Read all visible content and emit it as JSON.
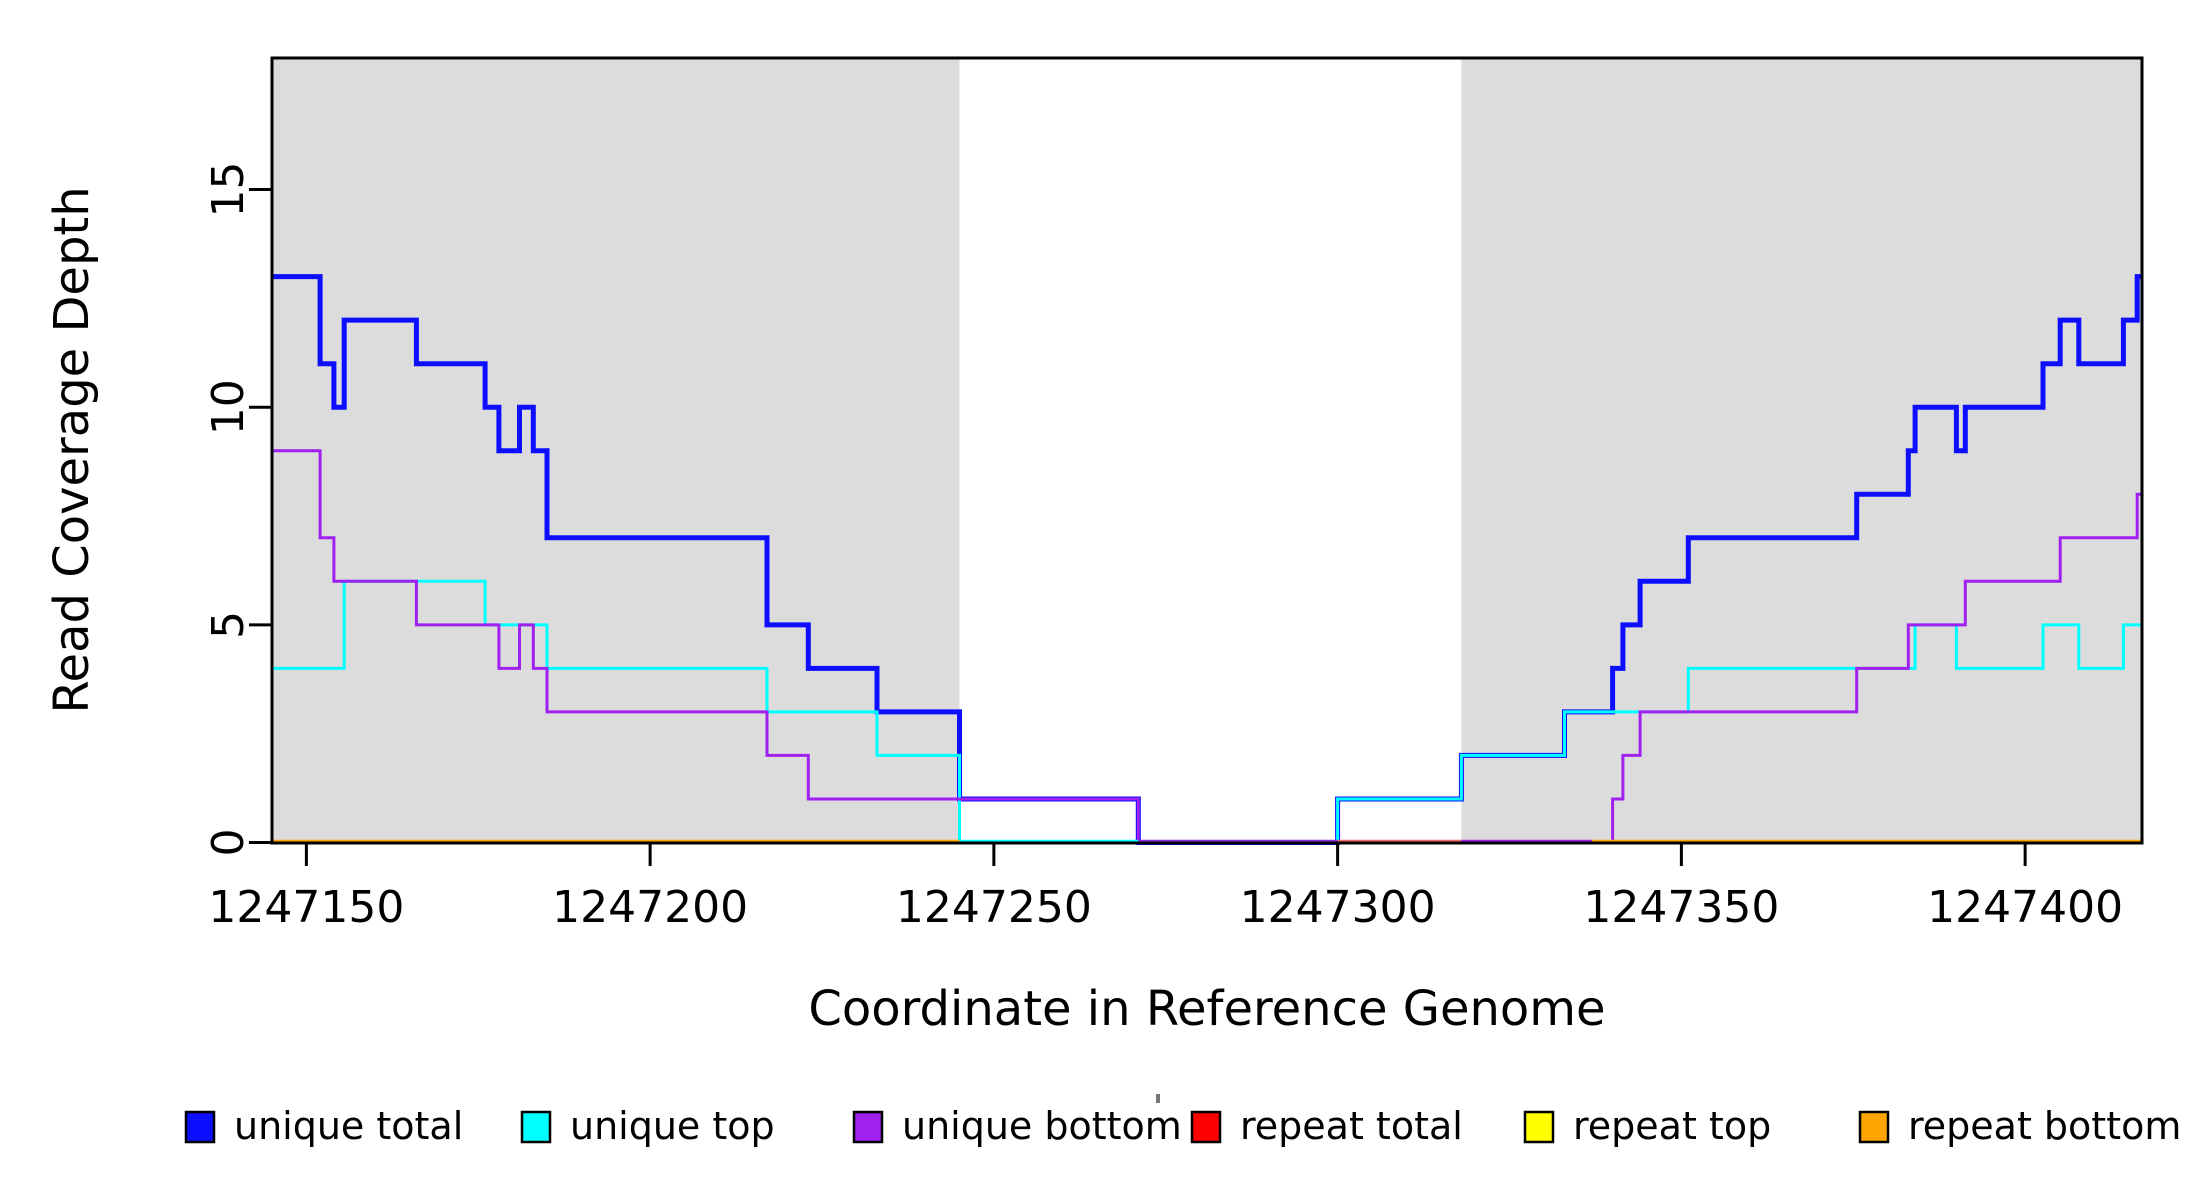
{
  "chart_data": {
    "type": "line",
    "title": "",
    "xlabel": "Coordinate in Reference Genome",
    "ylabel": "Read Coverage Depth",
    "xlim": [
      1247145,
      1247417
    ],
    "ylim": [
      0,
      18
    ],
    "grid": false,
    "legend_position": "bottom",
    "x_ticks": [
      1247150,
      1247200,
      1247250,
      1247300,
      1247350,
      1247400
    ],
    "y_ticks": [
      0,
      5,
      10,
      15
    ],
    "shaded_regions": {
      "color": "#DCDCDC",
      "ranges": [
        [
          1247145,
          1247245
        ],
        [
          1247318,
          1247417
        ]
      ]
    },
    "series": [
      {
        "name": "unique total",
        "color": "#0D0DFF",
        "width": 5,
        "breakpoints": [
          [
            1247145,
            13
          ],
          [
            1247152,
            11
          ],
          [
            1247154,
            10
          ],
          [
            1247155.5,
            12
          ],
          [
            1247166,
            11
          ],
          [
            1247176,
            10
          ],
          [
            1247178,
            9
          ],
          [
            1247181,
            10
          ],
          [
            1247183,
            9
          ],
          [
            1247185,
            7
          ],
          [
            1247217,
            5
          ],
          [
            1247223,
            4
          ],
          [
            1247233,
            3
          ],
          [
            1247245,
            1
          ],
          [
            1247271,
            0
          ],
          [
            1247300,
            1
          ],
          [
            1247318,
            2
          ],
          [
            1247333,
            3
          ],
          [
            1247340,
            4
          ],
          [
            1247341.5,
            5
          ],
          [
            1247344,
            6
          ],
          [
            1247351,
            7
          ],
          [
            1247375.5,
            8
          ],
          [
            1247383,
            9
          ],
          [
            1247384,
            10
          ],
          [
            1247390,
            9
          ],
          [
            1247391.3,
            10
          ],
          [
            1247402.6,
            11
          ],
          [
            1247405.1,
            12
          ],
          [
            1247407.8,
            11
          ],
          [
            1247414.3,
            12
          ],
          [
            1247416.3,
            13
          ]
        ]
      },
      {
        "name": "unique top",
        "color": "#00FFFF",
        "width": 3,
        "breakpoints": [
          [
            1247145,
            4
          ],
          [
            1247155.5,
            6
          ],
          [
            1247176,
            5
          ],
          [
            1247185,
            4
          ],
          [
            1247217,
            3
          ],
          [
            1247233,
            2
          ],
          [
            1247245,
            0
          ],
          [
            1247300,
            1
          ],
          [
            1247318,
            2
          ],
          [
            1247333,
            3
          ],
          [
            1247351,
            4
          ],
          [
            1247384,
            5
          ],
          [
            1247390,
            4
          ],
          [
            1247402.6,
            5
          ],
          [
            1247407.8,
            4
          ],
          [
            1247414.3,
            5
          ]
        ]
      },
      {
        "name": "unique bottom",
        "color": "#A020F0",
        "width": 3,
        "breakpoints": [
          [
            1247145,
            9
          ],
          [
            1247152,
            7
          ],
          [
            1247154,
            6
          ],
          [
            1247166,
            5
          ],
          [
            1247178,
            4
          ],
          [
            1247181,
            5
          ],
          [
            1247183,
            4
          ],
          [
            1247185,
            3
          ],
          [
            1247217,
            2
          ],
          [
            1247223,
            1
          ],
          [
            1247271,
            0
          ],
          [
            1247340,
            1
          ],
          [
            1247341.5,
            2
          ],
          [
            1247344,
            3
          ],
          [
            1247375.5,
            4
          ],
          [
            1247383,
            5
          ],
          [
            1247391.3,
            6
          ],
          [
            1247405.1,
            7
          ],
          [
            1247416.3,
            8
          ]
        ]
      },
      {
        "name": "repeat total",
        "color": "#FF0000",
        "width": 3,
        "breakpoints": [
          [
            1247145,
            0
          ]
        ]
      },
      {
        "name": "repeat top",
        "color": "#FFFF00",
        "width": 3,
        "breakpoints": [
          [
            1247145,
            0
          ]
        ]
      },
      {
        "name": "repeat bottom",
        "color": "#FFA500",
        "width": 3.5,
        "breakpoints": [
          [
            1247145,
            0
          ]
        ]
      }
    ],
    "baseline_segments": [
      {
        "from": 1247145,
        "to": 1247245,
        "color": "#FFA500"
      },
      {
        "from": 1247245,
        "to": 1247271,
        "color": "#00FFFF"
      },
      {
        "from": 1247271,
        "to": 1247300,
        "color": "#8A2BE2"
      },
      {
        "from": 1247300,
        "to": 1247318,
        "color": "#EE6A6A"
      },
      {
        "from": 1247318,
        "to": 1247337,
        "color": "#A020F0"
      },
      {
        "from": 1247337,
        "to": 1247417,
        "color": "#FFA500"
      }
    ]
  },
  "legend": {
    "items": [
      {
        "label": "unique total",
        "color": "#0D0DFF"
      },
      {
        "label": "unique top",
        "color": "#00FFFF"
      },
      {
        "label": "unique bottom",
        "color": "#A020F0"
      },
      {
        "label": "repeat total",
        "color": "#FF0000"
      },
      {
        "label": "repeat top",
        "color": "#FFFF00"
      },
      {
        "label": "repeat bottom",
        "color": "#FFA500"
      }
    ]
  }
}
